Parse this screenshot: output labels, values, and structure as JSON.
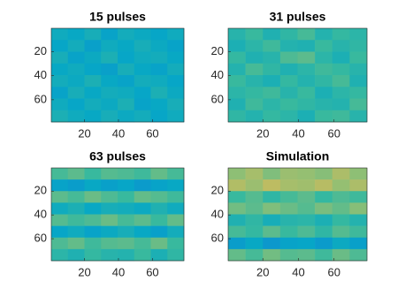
{
  "chart_data": [
    {
      "type": "heatmap",
      "title": "15 pulses",
      "colormap": "parula",
      "clim": [
        0,
        1
      ],
      "xlim": [
        0.5,
        78.5
      ],
      "ylim": [
        0.5,
        78.5
      ],
      "xticks": [
        20,
        40,
        60
      ],
      "yticks": [
        20,
        40,
        60
      ],
      "z": [
        [
          0.4,
          0.38,
          0.42,
          0.36,
          0.41,
          0.39,
          0.37,
          0.4
        ],
        [
          0.37,
          0.41,
          0.35,
          0.4,
          0.38,
          0.42,
          0.39,
          0.36
        ],
        [
          0.42,
          0.36,
          0.39,
          0.43,
          0.37,
          0.4,
          0.41,
          0.38
        ],
        [
          0.38,
          0.4,
          0.37,
          0.35,
          0.42,
          0.38,
          0.36,
          0.41
        ],
        [
          0.41,
          0.39,
          0.43,
          0.38,
          0.36,
          0.41,
          0.4,
          0.37
        ],
        [
          0.36,
          0.42,
          0.38,
          0.41,
          0.4,
          0.37,
          0.43,
          0.39
        ],
        [
          0.4,
          0.37,
          0.41,
          0.39,
          0.43,
          0.36,
          0.38,
          0.42
        ],
        [
          0.43,
          0.4,
          0.38,
          0.42,
          0.39,
          0.41,
          0.37,
          0.4
        ]
      ]
    },
    {
      "type": "heatmap",
      "title": "31 pulses",
      "colormap": "parula",
      "clim": [
        0,
        1
      ],
      "xlim": [
        0.5,
        78.5
      ],
      "ylim": [
        0.5,
        78.5
      ],
      "xticks": [
        20,
        40,
        60
      ],
      "yticks": [
        20,
        40,
        60
      ],
      "z": [
        [
          0.46,
          0.5,
          0.44,
          0.48,
          0.52,
          0.45,
          0.49,
          0.47
        ],
        [
          0.43,
          0.47,
          0.51,
          0.45,
          0.44,
          0.5,
          0.46,
          0.48
        ],
        [
          0.49,
          0.44,
          0.46,
          0.53,
          0.55,
          0.47,
          0.43,
          0.5
        ],
        [
          0.45,
          0.52,
          0.48,
          0.44,
          0.47,
          0.51,
          0.49,
          0.46
        ],
        [
          0.5,
          0.46,
          0.43,
          0.49,
          0.45,
          0.48,
          0.52,
          0.44
        ],
        [
          0.47,
          0.49,
          0.51,
          0.46,
          0.5,
          0.43,
          0.47,
          0.49
        ],
        [
          0.44,
          0.51,
          0.47,
          0.5,
          0.48,
          0.46,
          0.45,
          0.52
        ],
        [
          0.48,
          0.45,
          0.49,
          0.47,
          0.43,
          0.5,
          0.51,
          0.46
        ]
      ]
    },
    {
      "type": "heatmap",
      "title": "63 pulses",
      "colormap": "parula",
      "clim": [
        0,
        1
      ],
      "xlim": [
        0.5,
        78.5
      ],
      "ylim": [
        0.5,
        78.5
      ],
      "xticks": [
        20,
        40,
        60
      ],
      "yticks": [
        20,
        40,
        60
      ],
      "z": [
        [
          0.52,
          0.55,
          0.5,
          0.54,
          0.53,
          0.51,
          0.56,
          0.52
        ],
        [
          0.36,
          0.34,
          0.38,
          0.35,
          0.37,
          0.33,
          0.36,
          0.38
        ],
        [
          0.55,
          0.52,
          0.57,
          0.53,
          0.5,
          0.56,
          0.54,
          0.51
        ],
        [
          0.4,
          0.43,
          0.38,
          0.42,
          0.41,
          0.39,
          0.44,
          0.4
        ],
        [
          0.54,
          0.51,
          0.53,
          0.57,
          0.52,
          0.55,
          0.5,
          0.56
        ],
        [
          0.37,
          0.4,
          0.36,
          0.39,
          0.42,
          0.38,
          0.35,
          0.41
        ],
        [
          0.53,
          0.56,
          0.51,
          0.54,
          0.55,
          0.52,
          0.57,
          0.5
        ],
        [
          0.47,
          0.44,
          0.49,
          0.46,
          0.45,
          0.5,
          0.43,
          0.48
        ]
      ]
    },
    {
      "type": "heatmap",
      "title": "Simulation",
      "colormap": "parula",
      "clim": [
        0,
        1
      ],
      "xlim": [
        0.5,
        78.5
      ],
      "ylim": [
        0.5,
        78.5
      ],
      "xticks": [
        20,
        40,
        60
      ],
      "yticks": [
        20,
        40,
        60
      ],
      "z": [
        [
          0.62,
          0.66,
          0.6,
          0.64,
          0.63,
          0.61,
          0.67,
          0.62
        ],
        [
          0.68,
          0.64,
          0.7,
          0.66,
          0.65,
          0.69,
          0.63,
          0.67
        ],
        [
          0.5,
          0.54,
          0.48,
          0.52,
          0.55,
          0.49,
          0.53,
          0.51
        ],
        [
          0.58,
          0.55,
          0.6,
          0.57,
          0.54,
          0.59,
          0.56,
          0.61
        ],
        [
          0.44,
          0.48,
          0.42,
          0.46,
          0.47,
          0.43,
          0.49,
          0.45
        ],
        [
          0.52,
          0.49,
          0.55,
          0.5,
          0.53,
          0.48,
          0.54,
          0.51
        ],
        [
          0.34,
          0.38,
          0.32,
          0.36,
          0.37,
          0.33,
          0.39,
          0.35
        ],
        [
          0.56,
          0.52,
          0.58,
          0.54,
          0.55,
          0.51,
          0.57,
          0.53
        ]
      ]
    }
  ]
}
